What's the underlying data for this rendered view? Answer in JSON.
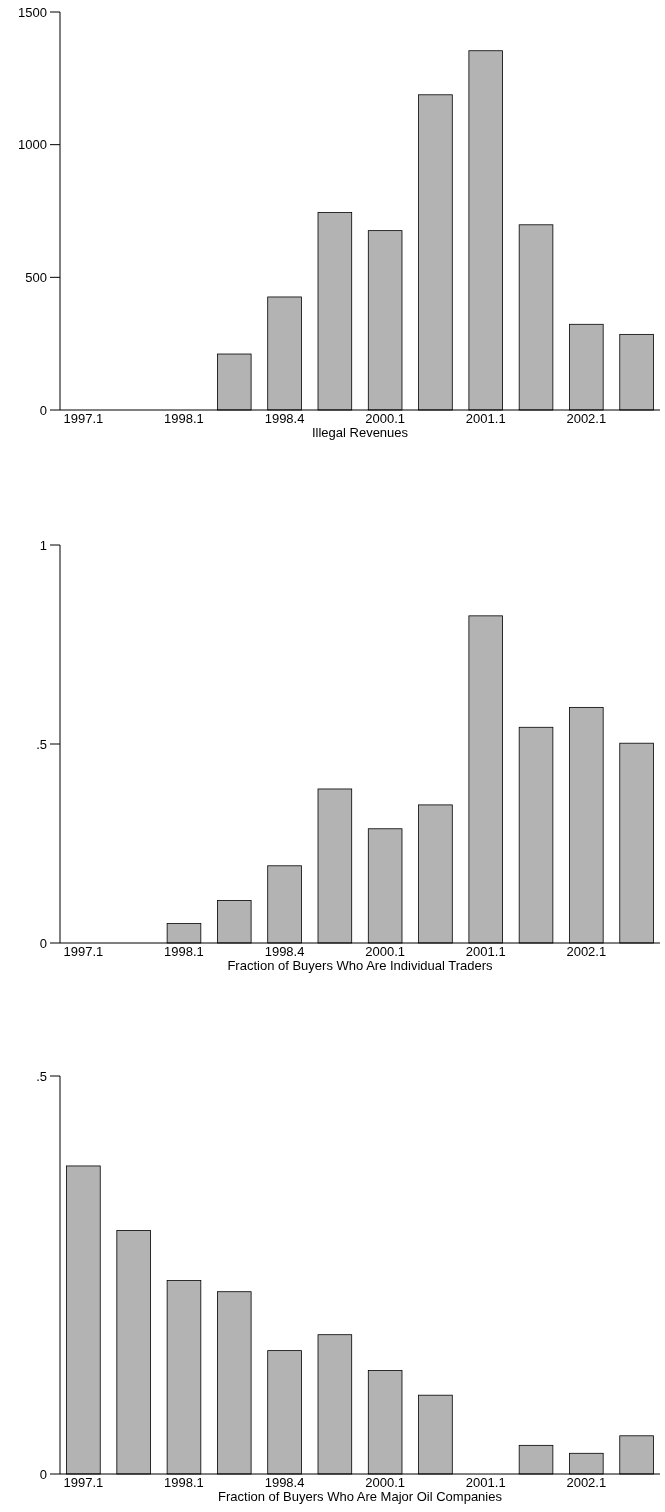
{
  "chart_data": [
    {
      "type": "bar",
      "xlabel": "Illegal Revenues",
      "categories": [
        "1997.1",
        null,
        "1998.1",
        null,
        "1998.4",
        null,
        "2000.1",
        null,
        "2001.1",
        null,
        "2002.1",
        null
      ],
      "values": [
        0,
        0,
        0,
        211,
        426,
        744,
        676,
        1188,
        1354,
        698,
        323,
        285
      ],
      "color": "#b3b3b3",
      "ylim": [
        0,
        1500
      ],
      "yticks": [
        0,
        500,
        1000,
        1500
      ],
      "grid": false
    },
    {
      "type": "bar",
      "xlabel": "Fraction of Buyers Who Are Individual Traders",
      "categories": [
        "1997.1",
        null,
        "1998.1",
        null,
        "1998.4",
        null,
        "2000.1",
        null,
        "2001.1",
        null,
        "2002.1",
        null
      ],
      "values": [
        0,
        0,
        0.049,
        0.107,
        0.194,
        0.387,
        0.287,
        0.347,
        0.822,
        0.542,
        0.592,
        0.502
      ],
      "color": "#b3b3b3",
      "ylim": [
        0,
        1
      ],
      "yticks": [
        0,
        {
          "value": 0.5,
          "label": ".5"
        },
        1
      ],
      "grid": false
    },
    {
      "type": "bar",
      "xlabel": "Fraction of Buyers Who Are Major Oil Companies",
      "categories": [
        "1997.1",
        null,
        "1998.1",
        null,
        "1998.4",
        null,
        "2000.1",
        null,
        "2001.1",
        null,
        "2002.1",
        null
      ],
      "values": [
        0.387,
        0.306,
        0.243,
        0.229,
        0.155,
        0.175,
        0.13,
        0.099,
        0,
        0.036,
        0.026,
        0.048
      ],
      "color": "#b3b3b3",
      "ylim": [
        0,
        0.5
      ],
      "yticks": [
        0,
        {
          "value": 0.5,
          "label": ".5"
        }
      ],
      "grid": false
    }
  ]
}
